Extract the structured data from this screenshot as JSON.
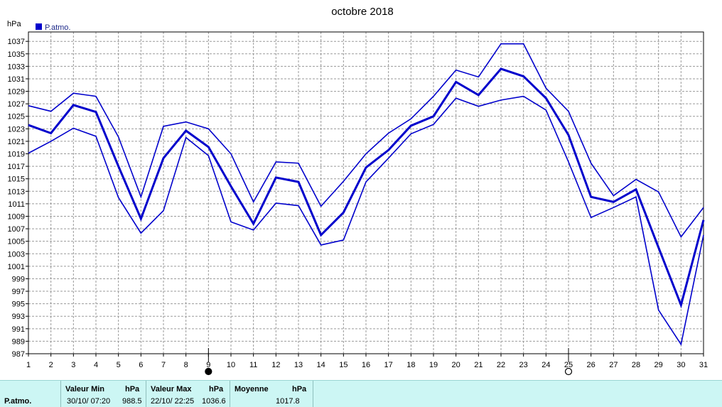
{
  "chart_data": {
    "type": "line",
    "title": "octobre 2018",
    "ylabel": "hPa",
    "ylim": [
      987,
      1038.5
    ],
    "y_ticks": [
      987,
      989,
      991,
      993,
      995,
      997,
      999,
      1001,
      1003,
      1005,
      1007,
      1009,
      1011,
      1013,
      1015,
      1017,
      1019,
      1021,
      1023,
      1025,
      1027,
      1029,
      1031,
      1033,
      1035,
      1037
    ],
    "x_ticks": [
      1,
      2,
      3,
      4,
      5,
      6,
      7,
      8,
      9,
      10,
      11,
      12,
      13,
      14,
      15,
      16,
      17,
      18,
      19,
      20,
      21,
      22,
      23,
      24,
      25,
      26,
      27,
      28,
      29,
      30,
      31
    ],
    "grid": true,
    "legend": {
      "position": "top-left",
      "label": "P.atmo.",
      "color": "#0000cc"
    },
    "moon_markers": [
      {
        "day": 9,
        "phase": "new-moon"
      },
      {
        "day": 25,
        "phase": "full-moon"
      }
    ],
    "series": [
      {
        "name": "P.atmo.",
        "role": "max",
        "color": "#0000cc",
        "values": [
          1026.7,
          1025.8,
          1028.7,
          1028.2,
          1021.7,
          1012.1,
          1023.4,
          1024.1,
          1023.0,
          1019.0,
          1011.3,
          1017.7,
          1017.5,
          1010.6,
          1014.6,
          1019.0,
          1022.3,
          1024.6,
          1028.2,
          1032.4,
          1031.3,
          1036.6,
          1036.6,
          1029.5,
          1025.8,
          1017.5,
          1012.3,
          1014.9,
          1012.9,
          1005.7,
          1010.4
        ]
      },
      {
        "name": "P.atmo.",
        "role": "avg",
        "color": "#0000cc",
        "values": [
          1023.6,
          1022.3,
          1026.8,
          1025.7,
          1017.0,
          1008.6,
          1018.3,
          1022.7,
          1020.1,
          1013.8,
          1007.8,
          1015.2,
          1014.5,
          1006.0,
          1009.6,
          1016.8,
          1019.6,
          1023.5,
          1025.0,
          1030.5,
          1028.4,
          1032.6,
          1031.4,
          1027.9,
          1022.0,
          1012.1,
          1011.3,
          1013.3,
          1004.0,
          994.8,
          1008.4
        ]
      },
      {
        "name": "P.atmo.",
        "role": "min",
        "color": "#0000cc",
        "values": [
          1019.1,
          1021.0,
          1023.1,
          1021.8,
          1012.0,
          1006.3,
          1009.9,
          1021.6,
          1018.7,
          1008.1,
          1006.8,
          1011.1,
          1010.7,
          1004.4,
          1005.2,
          1014.5,
          1018.3,
          1022.2,
          1023.7,
          1027.9,
          1026.6,
          1027.6,
          1028.2,
          1026.0,
          1017.7,
          1008.8,
          1010.4,
          1012.1,
          994.0,
          988.5,
          1006.0
        ]
      }
    ]
  },
  "stats": {
    "row_label": "P.atmo.",
    "min_header": "Valeur Min",
    "min_unit": "hPa",
    "min_date": "30/10/  07:20",
    "min_value": "988.5",
    "max_header": "Valeur Max",
    "max_unit": "hPa",
    "max_date": "22/10/  22:25",
    "max_value": "1036.6",
    "avg_header": "Moyenne",
    "avg_unit": "hPa",
    "avg_value": "1017.8"
  }
}
